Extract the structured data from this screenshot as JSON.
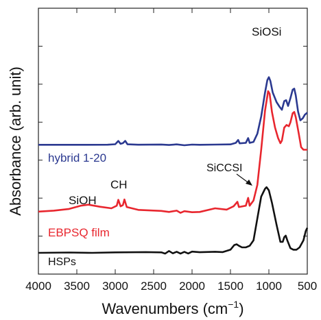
{
  "chart_data": {
    "type": "line",
    "title": "",
    "xlabel": "Wavenumbers (cm",
    "xlabel_sup": "−1",
    "xlabel_close": ")",
    "ylabel": "Absorbance (arb. unit)",
    "xlim": [
      4000,
      500
    ],
    "x_reversed": true,
    "y_ticks_labeled": false,
    "grid": false,
    "x_ticks": [
      4000,
      3500,
      3000,
      2500,
      2000,
      1500,
      1000,
      500
    ],
    "x_tick_labels": [
      "4000",
      "3500",
      "3000",
      "2500",
      "2000",
      "1500",
      "1000",
      "500"
    ],
    "annotations": [
      {
        "text": "SiOSi",
        "x": 1000
      },
      {
        "text": "SiCCSI",
        "x": 1200
      },
      {
        "text": "SiOH",
        "x": 3400
      },
      {
        "text": "CH",
        "x": 2930
      }
    ],
    "series": [
      {
        "name": "hybrid 1-20",
        "color": "#2b3990",
        "points": [
          [
            4000,
            0.5
          ],
          [
            3500,
            0.5
          ],
          [
            3100,
            0.6
          ],
          [
            3000,
            1.1
          ],
          [
            2960,
            4.5
          ],
          [
            2930,
            1.5
          ],
          [
            2900,
            2.2
          ],
          [
            2870,
            4.6
          ],
          [
            2840,
            1.0
          ],
          [
            2700,
            0.6
          ],
          [
            2400,
            0.8
          ],
          [
            2300,
            0.3
          ],
          [
            2200,
            0.9
          ],
          [
            2100,
            0
          ],
          [
            2000,
            0.7
          ],
          [
            1900,
            0.5
          ],
          [
            1700,
            0.7
          ],
          [
            1500,
            0.9
          ],
          [
            1430,
            2.5
          ],
          [
            1400,
            5.5
          ],
          [
            1380,
            2.0
          ],
          [
            1300,
            2.5
          ],
          [
            1270,
            7.5
          ],
          [
            1250,
            2.5
          ],
          [
            1200,
            3.5
          ],
          [
            1150,
            12
          ],
          [
            1100,
            30
          ],
          [
            1050,
            55
          ],
          [
            1020,
            68
          ],
          [
            1000,
            71
          ],
          [
            980,
            67
          ],
          [
            950,
            55
          ],
          [
            900,
            45
          ],
          [
            860,
            40
          ],
          [
            830,
            37
          ],
          [
            800,
            46
          ],
          [
            775,
            47
          ],
          [
            750,
            41
          ],
          [
            720,
            49
          ],
          [
            690,
            58
          ],
          [
            670,
            59
          ],
          [
            650,
            52
          ],
          [
            620,
            35
          ],
          [
            590,
            26
          ],
          [
            560,
            28
          ],
          [
            530,
            32
          ],
          [
            500,
            34
          ]
        ]
      },
      {
        "name": "EBPSQ film",
        "color": "#e8262e",
        "points": [
          [
            4000,
            7.5
          ],
          [
            3800,
            8.2
          ],
          [
            3600,
            9.5
          ],
          [
            3450,
            12
          ],
          [
            3350,
            12.8
          ],
          [
            3200,
            11.2
          ],
          [
            3050,
            10
          ],
          [
            2980,
            12
          ],
          [
            2960,
            16.5
          ],
          [
            2930,
            11.5
          ],
          [
            2900,
            12.5
          ],
          [
            2880,
            16.8
          ],
          [
            2850,
            11
          ],
          [
            2700,
            8.8
          ],
          [
            2400,
            8
          ],
          [
            2300,
            7.2
          ],
          [
            2200,
            8.2
          ],
          [
            2150,
            6.5
          ],
          [
            2100,
            7.8
          ],
          [
            2000,
            7
          ],
          [
            1900,
            7.2
          ],
          [
            1700,
            10
          ],
          [
            1550,
            9
          ],
          [
            1460,
            11.5
          ],
          [
            1410,
            15
          ],
          [
            1390,
            11
          ],
          [
            1300,
            12
          ],
          [
            1270,
            18
          ],
          [
            1250,
            12
          ],
          [
            1200,
            16
          ],
          [
            1150,
            28
          ],
          [
            1100,
            55
          ],
          [
            1050,
            85
          ],
          [
            1010,
            100
          ],
          [
            990,
            98
          ],
          [
            960,
            84
          ],
          [
            920,
            72
          ],
          [
            880,
            64
          ],
          [
            850,
            60
          ],
          [
            830,
            62
          ],
          [
            800,
            72
          ],
          [
            770,
            74
          ],
          [
            740,
            73
          ],
          [
            720,
            76
          ],
          [
            690,
            83
          ],
          [
            670,
            84
          ],
          [
            650,
            80
          ],
          [
            610,
            67
          ],
          [
            580,
            57
          ],
          [
            550,
            55
          ],
          [
            520,
            55
          ],
          [
            500,
            55
          ]
        ]
      },
      {
        "name": "HSPs",
        "color": "#111111",
        "points": [
          [
            4000,
            0
          ],
          [
            3600,
            0.2
          ],
          [
            3300,
            0
          ],
          [
            3000,
            0.3
          ],
          [
            2600,
            0.5
          ],
          [
            2400,
            0.3
          ],
          [
            2350,
            -0.5
          ],
          [
            2300,
            1.2
          ],
          [
            2250,
            -0.3
          ],
          [
            2200,
            0.7
          ],
          [
            2150,
            -0.5
          ],
          [
            2100,
            0.6
          ],
          [
            2050,
            -0.4
          ],
          [
            2000,
            0.8
          ],
          [
            1900,
            0.4
          ],
          [
            1700,
            0.7
          ],
          [
            1600,
            0.5
          ],
          [
            1500,
            2
          ],
          [
            1450,
            5
          ],
          [
            1420,
            5.5
          ],
          [
            1390,
            4.5
          ],
          [
            1350,
            3.5
          ],
          [
            1300,
            3.5
          ],
          [
            1250,
            4.5
          ],
          [
            1200,
            8
          ],
          [
            1150,
            22
          ],
          [
            1100,
            36
          ],
          [
            1050,
            41
          ],
          [
            1030,
            42
          ],
          [
            1000,
            40
          ],
          [
            960,
            32
          ],
          [
            900,
            18
          ],
          [
            850,
            7
          ],
          [
            820,
            7
          ],
          [
            800,
            10
          ],
          [
            780,
            11
          ],
          [
            760,
            8
          ],
          [
            720,
            3
          ],
          [
            680,
            2
          ],
          [
            640,
            2
          ],
          [
            600,
            3.5
          ],
          [
            550,
            8
          ],
          [
            520,
            14
          ],
          [
            500,
            16
          ]
        ]
      }
    ]
  }
}
